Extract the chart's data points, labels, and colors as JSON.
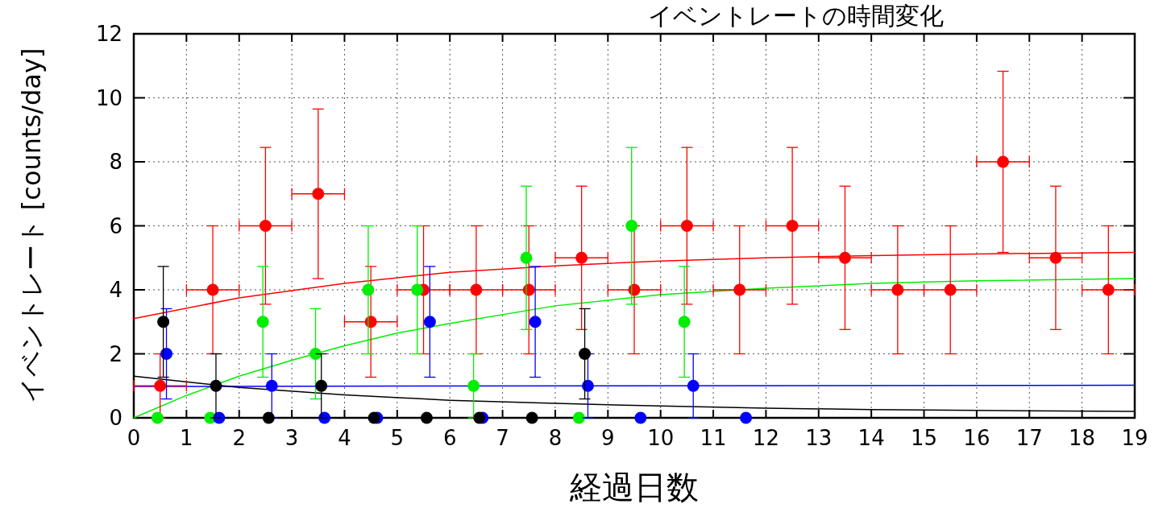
{
  "chart_data": {
    "type": "scatter",
    "title": "イベントレートの時間変化",
    "xlabel": "経過日数",
    "ylabel": "イベントレート [counts/day]",
    "xlim": [
      0,
      19
    ],
    "xticks": [
      0,
      1,
      2,
      3,
      4,
      5,
      6,
      7,
      8,
      9,
      10,
      11,
      12,
      13,
      14,
      15,
      16,
      17,
      18,
      19
    ],
    "ylim": [
      0,
      12
    ],
    "yticks": [
      0,
      2,
      4,
      6,
      8,
      10,
      12
    ],
    "grid": true,
    "marker": "circle",
    "series": [
      {
        "type": "line",
        "marker": "none",
        "color": "#ff0000",
        "x": [
          0,
          2,
          4,
          6,
          8,
          10,
          12,
          14,
          16,
          19
        ],
        "values": [
          3.1,
          3.75,
          4.2,
          4.55,
          4.75,
          4.9,
          5.0,
          5.07,
          5.12,
          5.17
        ]
      },
      {
        "type": "line",
        "marker": "none",
        "color": "#00ee00",
        "x": [
          0,
          1,
          2,
          3,
          4,
          5,
          6,
          8,
          10,
          12,
          14,
          16,
          19
        ],
        "values": [
          0,
          0.7,
          1.3,
          1.8,
          2.25,
          2.65,
          2.95,
          3.5,
          3.85,
          4.05,
          4.2,
          4.28,
          4.35
        ]
      },
      {
        "type": "line",
        "marker": "none",
        "color": "#0000ff",
        "x": [
          0,
          19
        ],
        "values": [
          0.98,
          1.02
        ]
      },
      {
        "type": "line",
        "marker": "none",
        "color": "#000000",
        "x": [
          0,
          2,
          4,
          6,
          8,
          10,
          12,
          14,
          16,
          19
        ],
        "values": [
          1.3,
          0.95,
          0.72,
          0.55,
          0.45,
          0.37,
          0.3,
          0.26,
          0.23,
          0.2
        ]
      },
      {
        "type": "scatter",
        "color": "#ff0000",
        "x": [
          0.5,
          1.5,
          2.5,
          3.5,
          4.5,
          5.5,
          6.5,
          7.5,
          8.5,
          9.5,
          10.5,
          11.5,
          12.5,
          13.5,
          14.5,
          15.5,
          16.5,
          17.5,
          18.5
        ],
        "values": [
          1,
          4,
          6,
          7,
          3,
          4,
          4,
          4,
          5,
          4,
          6,
          4,
          6,
          5,
          4,
          4,
          8,
          5,
          4
        ],
        "errors": [
          1,
          2,
          2.45,
          2.65,
          1.73,
          2,
          2,
          2,
          2.24,
          2,
          2.45,
          2,
          2.45,
          2.24,
          2,
          2,
          2.83,
          2.24,
          2
        ],
        "xerrors": [
          0.5,
          0.5,
          0.5,
          0.5,
          0.5,
          0.5,
          0.5,
          0.5,
          0.5,
          0.5,
          0.5,
          0.5,
          0.5,
          0.5,
          0.5,
          0.5,
          0.5,
          0.5,
          0.5
        ]
      },
      {
        "type": "scatter",
        "color": "#00ee00",
        "x": [
          0.45,
          1.45,
          2.45,
          3.45,
          4.45,
          5.38,
          6.45,
          7.45,
          8.45,
          9.45,
          10.45
        ],
        "values": [
          0,
          0,
          3,
          2,
          4,
          4,
          1,
          5,
          0,
          6,
          3
        ],
        "errors": [
          null,
          null,
          1.73,
          1.41,
          2,
          2,
          1,
          2.24,
          null,
          2.45,
          1.73
        ]
      },
      {
        "type": "scatter",
        "color": "#0000ff",
        "x": [
          0.62,
          1.62,
          2.62,
          3.62,
          4.62,
          5.62,
          6.62,
          7.62,
          8.62,
          9.62,
          10.62,
          11.62
        ],
        "values": [
          2,
          0,
          1,
          0,
          0,
          3,
          0,
          3,
          1,
          0,
          1,
          0
        ],
        "errors": [
          1.41,
          null,
          1,
          null,
          null,
          1.73,
          null,
          1.73,
          1,
          null,
          1,
          null
        ]
      },
      {
        "type": "scatter",
        "color": "#000000",
        "x": [
          0.56,
          1.56,
          2.56,
          3.56,
          4.56,
          5.56,
          6.56,
          7.56,
          8.56
        ],
        "values": [
          3,
          1,
          0,
          1,
          0,
          0,
          0,
          0,
          2
        ],
        "errors": [
          1.73,
          1,
          null,
          1,
          null,
          null,
          null,
          null,
          1.41
        ]
      }
    ]
  }
}
